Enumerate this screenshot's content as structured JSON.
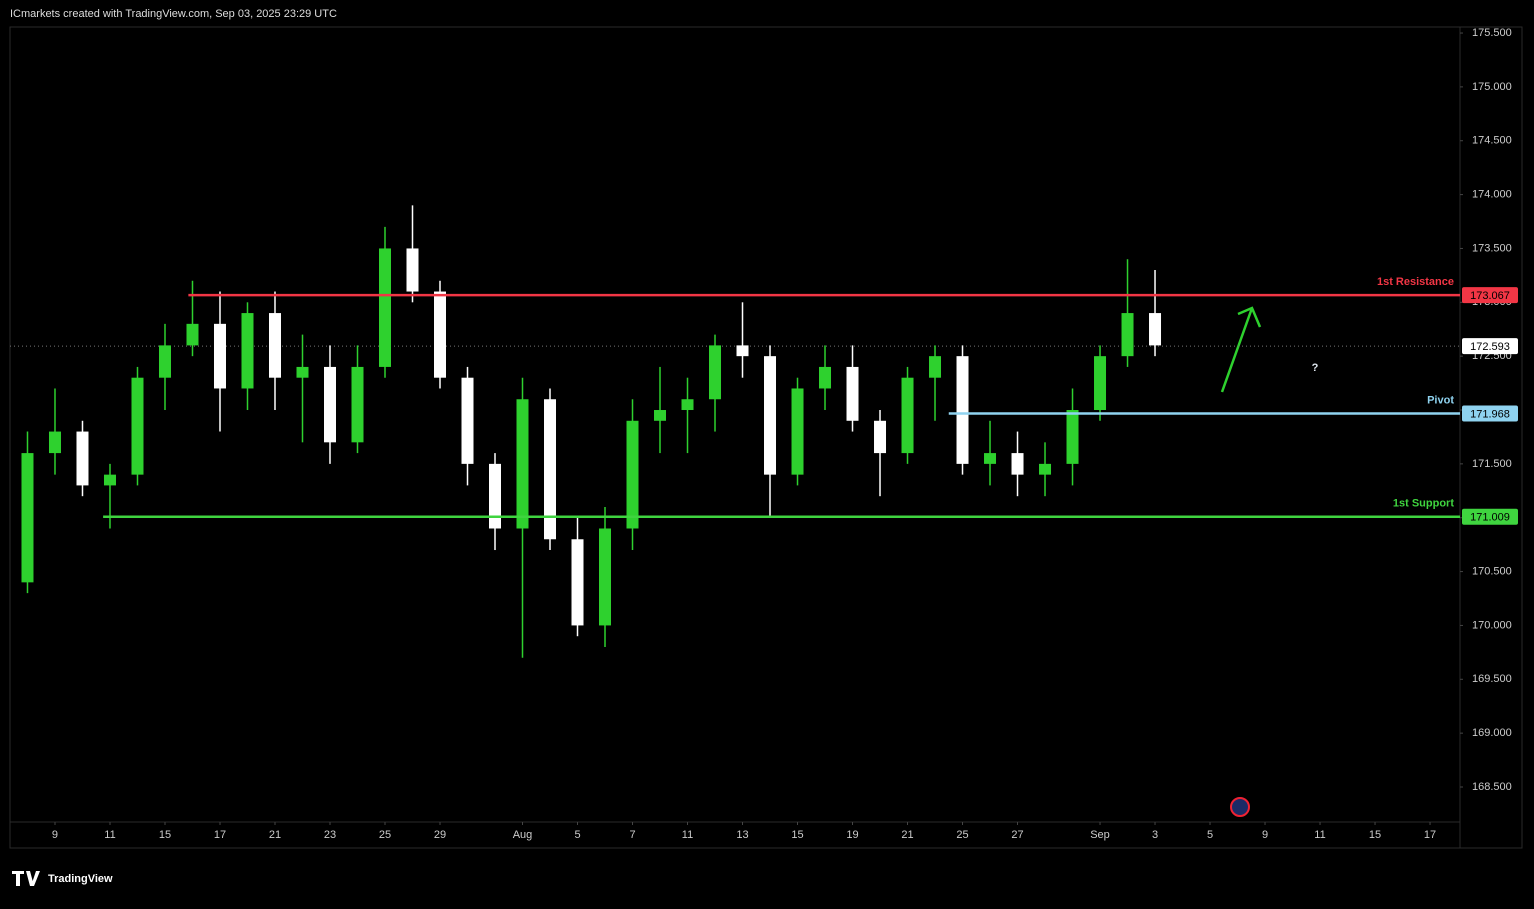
{
  "header": "ICmarkets created with TradingView.com, Sep 03, 2025 23:29 UTC",
  "brand": "TradingView",
  "chart_data": {
    "type": "candlestick",
    "up_color": "#2ed12e",
    "down_color": "#ffffff",
    "xlim": [
      -1.636,
      51.09
    ],
    "ylim": [
      168.175,
      175.556
    ],
    "xticks": [
      {
        "value": 0,
        "label": "9"
      },
      {
        "value": 2,
        "label": "11"
      },
      {
        "value": 4,
        "label": "15"
      },
      {
        "value": 6,
        "label": "17"
      },
      {
        "value": 8,
        "label": "21"
      },
      {
        "value": 10,
        "label": "23"
      },
      {
        "value": 12,
        "label": "25"
      },
      {
        "value": 14,
        "label": "29"
      },
      {
        "value": 17,
        "label": "Aug"
      },
      {
        "value": 19,
        "label": "5"
      },
      {
        "value": 21,
        "label": "7"
      },
      {
        "value": 23,
        "label": "11"
      },
      {
        "value": 25,
        "label": "13"
      },
      {
        "value": 27,
        "label": "15"
      },
      {
        "value": 29,
        "label": "19"
      },
      {
        "value": 31,
        "label": "21"
      },
      {
        "value": 33,
        "label": "25"
      },
      {
        "value": 35,
        "label": "27"
      },
      {
        "value": 38,
        "label": "Sep"
      },
      {
        "value": 40,
        "label": "3"
      },
      {
        "value": 42,
        "label": "5"
      },
      {
        "value": 44,
        "label": "9"
      },
      {
        "value": 46,
        "label": "11"
      },
      {
        "value": 48,
        "label": "15"
      },
      {
        "value": 50,
        "label": "17"
      }
    ],
    "yticks": [
      {
        "value": 168.5,
        "label": "168.500"
      },
      {
        "value": 169,
        "label": "169.000"
      },
      {
        "value": 169.5,
        "label": "169.500"
      },
      {
        "value": 170,
        "label": "170.000"
      },
      {
        "value": 170.5,
        "label": "170.500"
      },
      {
        "value": 171,
        "label": "171.000"
      },
      {
        "value": 171.5,
        "label": "171.500"
      },
      {
        "value": 172,
        "label": "172.000"
      },
      {
        "value": 172.5,
        "label": "172.500"
      },
      {
        "value": 173,
        "label": "173.000"
      },
      {
        "value": 173.5,
        "label": "173.500"
      },
      {
        "value": 174,
        "label": "174.000"
      },
      {
        "value": 174.5,
        "label": "174.500"
      },
      {
        "value": 175,
        "label": "175.000"
      },
      {
        "value": 175.5,
        "label": "175.500"
      }
    ],
    "x": [
      -1,
      0,
      1,
      2,
      3,
      4,
      5,
      6,
      7,
      8,
      9,
      10,
      11,
      12,
      13,
      14,
      15,
      16,
      17,
      18,
      19,
      20,
      21,
      22,
      23,
      24,
      25,
      26,
      27,
      28,
      29,
      30,
      31,
      32,
      33,
      34,
      35,
      36,
      37,
      38,
      39,
      40
    ],
    "open": [
      170.4,
      171.6,
      171.8,
      171.3,
      171.4,
      172.3,
      172.6,
      172.8,
      172.2,
      172.9,
      172.3,
      172.4,
      171.7,
      172.4,
      173.5,
      173.1,
      172.3,
      171.5,
      170.9,
      172.1,
      170.8,
      170.0,
      170.9,
      171.9,
      172.0,
      172.1,
      172.6,
      172.5,
      171.4,
      172.2,
      172.4,
      171.9,
      171.6,
      172.3,
      172.5,
      171.5,
      171.6,
      171.4,
      171.5,
      172.0,
      172.5,
      172.9
    ],
    "high": [
      171.8,
      172.2,
      171.9,
      171.5,
      172.4,
      172.8,
      173.2,
      173.1,
      173.0,
      173.1,
      172.7,
      172.6,
      172.6,
      173.7,
      173.9,
      173.2,
      172.4,
      171.6,
      172.3,
      172.2,
      171.0,
      171.1,
      172.1,
      172.4,
      172.3,
      172.7,
      173.0,
      172.6,
      172.3,
      172.6,
      172.6,
      172.0,
      172.4,
      172.6,
      172.6,
      171.9,
      171.8,
      171.7,
      172.2,
      172.6,
      173.4,
      173.3
    ],
    "low": [
      170.3,
      171.4,
      171.2,
      170.9,
      171.3,
      172.0,
      172.5,
      171.8,
      172.0,
      172.0,
      171.7,
      171.5,
      171.6,
      172.3,
      173.0,
      172.2,
      171.3,
      170.7,
      169.7,
      170.7,
      169.9,
      169.8,
      170.7,
      171.6,
      171.6,
      171.8,
      172.3,
      171.0,
      171.3,
      172.0,
      171.8,
      171.2,
      171.5,
      171.9,
      171.4,
      171.3,
      171.2,
      171.2,
      171.3,
      171.9,
      172.4,
      172.5
    ],
    "close": [
      171.6,
      171.8,
      171.3,
      171.4,
      172.3,
      172.6,
      172.8,
      172.2,
      172.9,
      172.3,
      172.4,
      171.7,
      172.4,
      173.5,
      173.1,
      172.3,
      171.5,
      170.9,
      172.1,
      170.8,
      170.0,
      170.9,
      171.9,
      172.0,
      172.1,
      172.6,
      172.5,
      171.4,
      172.2,
      172.4,
      171.9,
      171.6,
      172.3,
      172.5,
      171.5,
      171.6,
      171.4,
      171.5,
      172.0,
      172.5,
      172.9,
      172.6
    ],
    "levels": [
      {
        "name": "1st Resistance",
        "value": 173.067,
        "start": 4.85,
        "color": "#f23645"
      },
      {
        "name": "Pivot",
        "value": 171.968,
        "start": 32.5,
        "color": "#8fd3f0"
      },
      {
        "name": "1st Support",
        "value": 171.009,
        "start": 1.75,
        "color": "#3fd43f"
      }
    ],
    "last_price": 172.593,
    "annotation": "?"
  }
}
